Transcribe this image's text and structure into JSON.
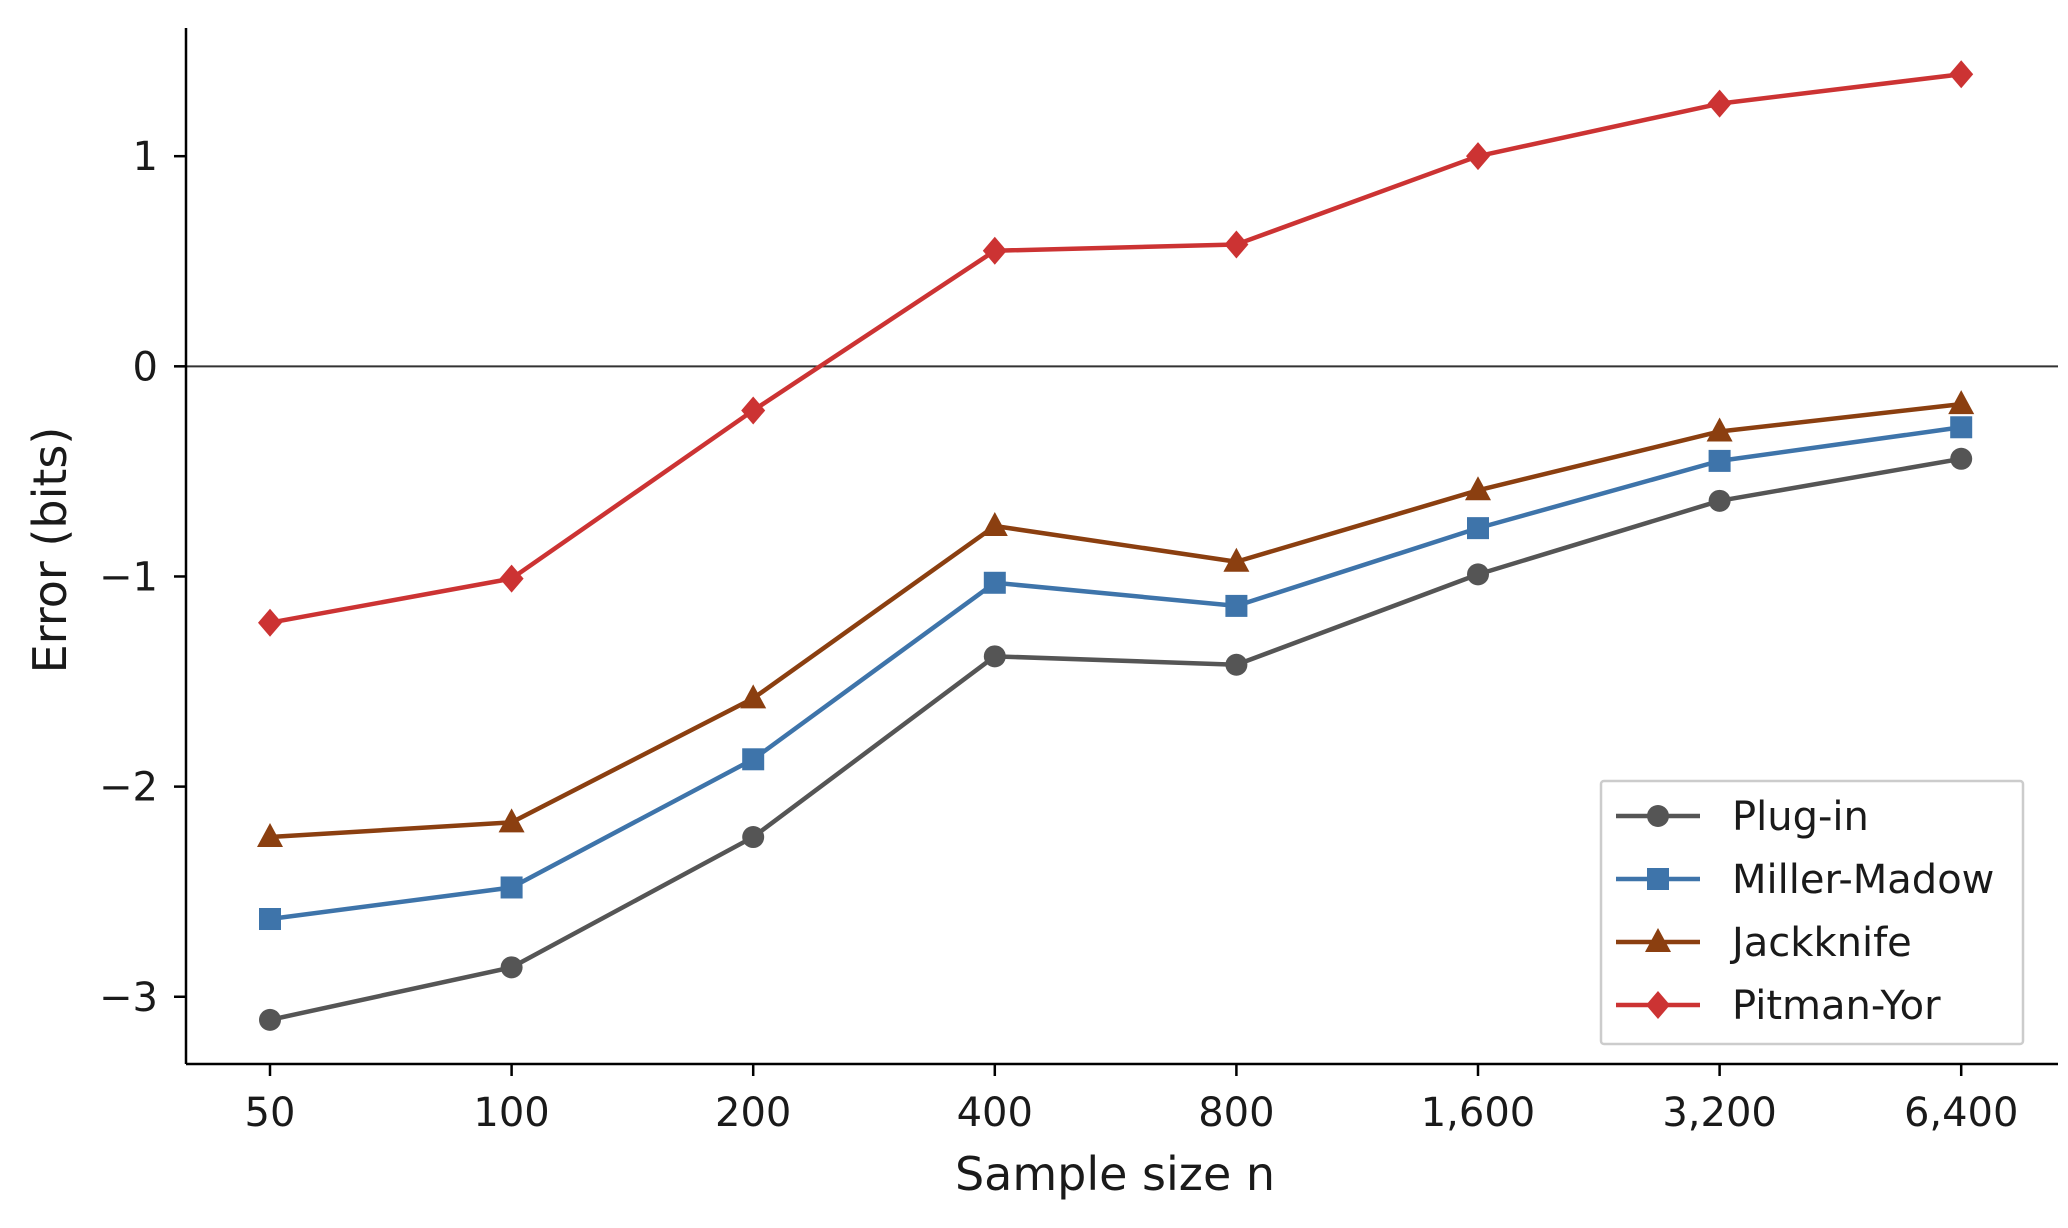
{
  "chart_data": {
    "type": "line",
    "xlabel": "Sample size n",
    "ylabel": "Error (bits)",
    "categories": [
      "50",
      "100",
      "200",
      "400",
      "800",
      "1,600",
      "3,200",
      "6,400"
    ],
    "ylim": [
      -3.32,
      1.61
    ],
    "yticks": [
      {
        "value": -3,
        "label": "−3"
      },
      {
        "value": -2,
        "label": "−2"
      },
      {
        "value": -1,
        "label": "−1"
      },
      {
        "value": 0,
        "label": "0"
      },
      {
        "value": 1,
        "label": "1"
      }
    ],
    "reference_line": 0,
    "grid": false,
    "legend_position": "lower-right",
    "series": [
      {
        "name": "Plug-in",
        "color": "#555555",
        "marker": "circle",
        "values": [
          -3.11,
          -2.86,
          -2.24,
          -1.38,
          -1.42,
          -0.99,
          -0.64,
          -0.44
        ]
      },
      {
        "name": "Miller-Madow",
        "color": "#3e74aa",
        "marker": "square",
        "values": [
          -2.63,
          -2.48,
          -1.87,
          -1.03,
          -1.14,
          -0.77,
          -0.45,
          -0.29
        ]
      },
      {
        "name": "Jackknife",
        "color": "#8b3f10",
        "marker": "triangle",
        "values": [
          -2.24,
          -2.17,
          -1.58,
          -0.76,
          -0.93,
          -0.59,
          -0.31,
          -0.18
        ]
      },
      {
        "name": "Pitman-Yor",
        "color": "#cc3333",
        "marker": "diamond",
        "values": [
          -1.22,
          -1.01,
          -0.21,
          0.55,
          0.58,
          1.0,
          1.25,
          1.39
        ]
      }
    ]
  }
}
